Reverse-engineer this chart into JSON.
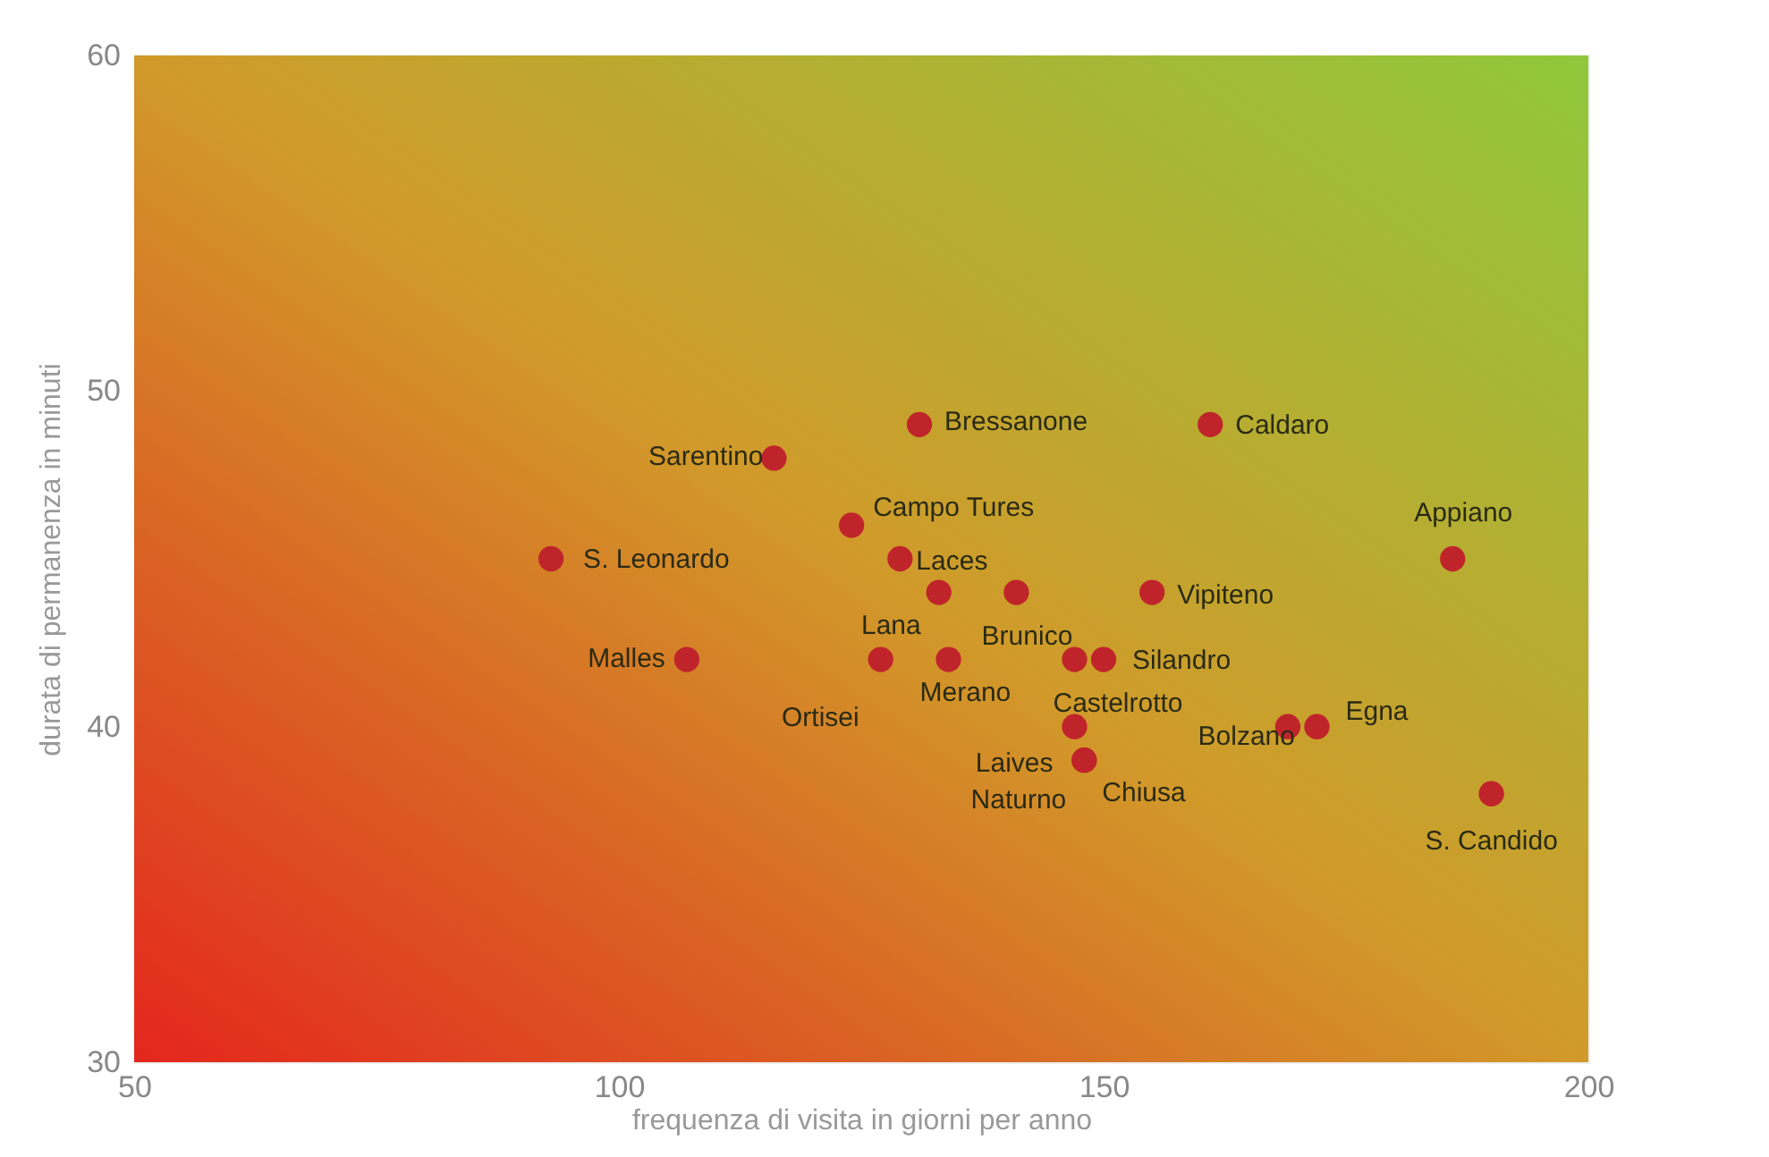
{
  "chart_data": {
    "type": "scatter",
    "xlabel": "frequenza di visita in giorni per anno",
    "ylabel": "durata di permanenza in minuti",
    "xlim": [
      50,
      200
    ],
    "xticks": [
      50,
      100,
      150,
      200
    ],
    "ylim": [
      30,
      60
    ],
    "yticks": [
      30,
      40,
      50,
      60
    ],
    "grid": true,
    "marker": "circle",
    "series": [
      {
        "color": "#c0242b",
        "x": [
          93,
          107,
          116,
          131,
          124,
          129,
          127,
          133,
          134,
          141,
          147,
          150,
          147,
          148,
          148,
          155,
          161,
          169,
          172,
          186,
          190
        ],
        "values": [
          45,
          42,
          48,
          49,
          46,
          45,
          42,
          44,
          42,
          44,
          42,
          42,
          40,
          39,
          39,
          44,
          49,
          40,
          40,
          45,
          38
        ],
        "value_labels": [
          "S. Leonardo",
          "Malles",
          "Sarentino",
          "Bressanone",
          "Campo Tures",
          "Laces",
          "Ortisei",
          "Lana",
          "Merano",
          "Brunico",
          "Castelrotto",
          "Silandro",
          "Laives",
          "Naturno",
          "Chiusa",
          "Vipiteno",
          "Caldaro",
          "Bolzano",
          "Egna",
          "Appiano",
          "S. Candido"
        ]
      }
    ]
  }
}
